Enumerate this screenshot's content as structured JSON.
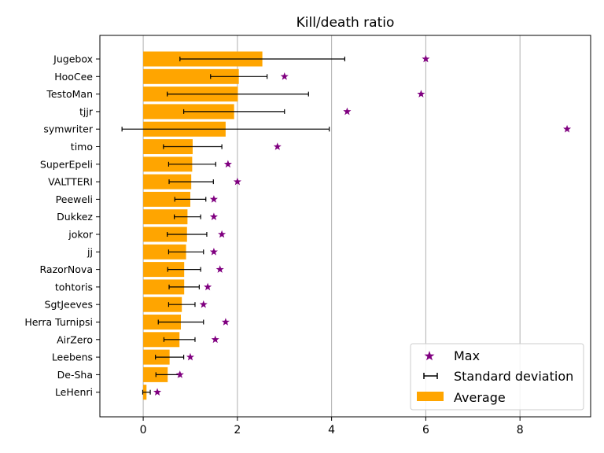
{
  "chart_data": {
    "type": "bar",
    "orientation": "horizontal",
    "title": "Kill/death ratio",
    "xlabel": "",
    "ylabel": "",
    "xlim": [
      -0.92,
      9.5
    ],
    "xticks": [
      0,
      2,
      4,
      6,
      8
    ],
    "grid": "vertical",
    "legend_position": "lower-right",
    "colors": {
      "bar": "#ffa500",
      "max_marker": "#800080",
      "error": "#000000",
      "grid": "#b0b0b0"
    },
    "categories": [
      "Jugebox",
      "HooCee",
      "TestoMan",
      "tjjr",
      "symwriter",
      "timo",
      "SuperEpeli",
      "VALTTERI",
      "Peeweli",
      "Dukkez",
      "jokor",
      "jj",
      "RazorNova",
      "tohtoris",
      "SgtJeeves",
      "Herra Turnipsi",
      "AirZero",
      "Leebens",
      "De-Sha",
      "LeHenri"
    ],
    "series": [
      {
        "name": "Average",
        "values": [
          2.53,
          2.03,
          2.01,
          1.93,
          1.75,
          1.05,
          1.04,
          1.02,
          1.0,
          0.94,
          0.93,
          0.91,
          0.87,
          0.87,
          0.82,
          0.8,
          0.77,
          0.56,
          0.52,
          0.07
        ]
      },
      {
        "name": "Standard deviation",
        "values": [
          1.75,
          0.6,
          1.5,
          1.07,
          2.2,
          0.62,
          0.5,
          0.47,
          0.33,
          0.28,
          0.42,
          0.37,
          0.35,
          0.32,
          0.28,
          0.48,
          0.33,
          0.3,
          0.25,
          0.08
        ]
      },
      {
        "name": "Max",
        "values": [
          6.0,
          3.0,
          5.9,
          4.33,
          9.0,
          2.85,
          1.8,
          2.0,
          1.5,
          1.5,
          1.67,
          1.5,
          1.63,
          1.37,
          1.28,
          1.75,
          1.53,
          1.0,
          0.78,
          0.3
        ]
      }
    ],
    "legend": [
      "Max",
      "Standard deviation",
      "Average"
    ]
  }
}
